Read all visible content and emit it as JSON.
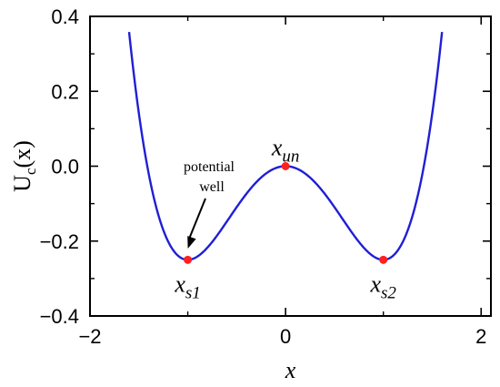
{
  "chart_data": {
    "type": "line",
    "title": "",
    "xlabel": "x",
    "ylabel": {
      "main": "U",
      "sub": "c",
      "arg": "(x)"
    },
    "xlim": [
      -2.0,
      2.1
    ],
    "ylim": [
      -0.4,
      0.4
    ],
    "xticks": [
      -2,
      0,
      2
    ],
    "xtick_labels": [
      "−2",
      "0",
      "2"
    ],
    "yticks": [
      -0.4,
      -0.2,
      0.0,
      0.2,
      0.4
    ],
    "ytick_labels": [
      "−0.4",
      "−0.2",
      "0.0",
      "0.2",
      "0.4"
    ],
    "grid": false,
    "series": [
      {
        "function": "U(x) = x^4/4 - x^2/2",
        "x_range": [
          -1.6,
          1.6
        ],
        "color": "#1f1fd6"
      }
    ],
    "points": [
      {
        "x": -1.0,
        "y": -0.25,
        "label": "x",
        "sub": "s1",
        "color": "#ff2020"
      },
      {
        "x": 0.0,
        "y": 0.0,
        "label": "x",
        "sub": "un",
        "color": "#ff2020"
      },
      {
        "x": 1.0,
        "y": -0.25,
        "label": "x",
        "sub": "s2",
        "color": "#ff2020"
      }
    ],
    "annotation": {
      "lines": [
        "potential",
        "well"
      ],
      "arrow_to": {
        "x": -1.0,
        "y": -0.22
      }
    }
  }
}
